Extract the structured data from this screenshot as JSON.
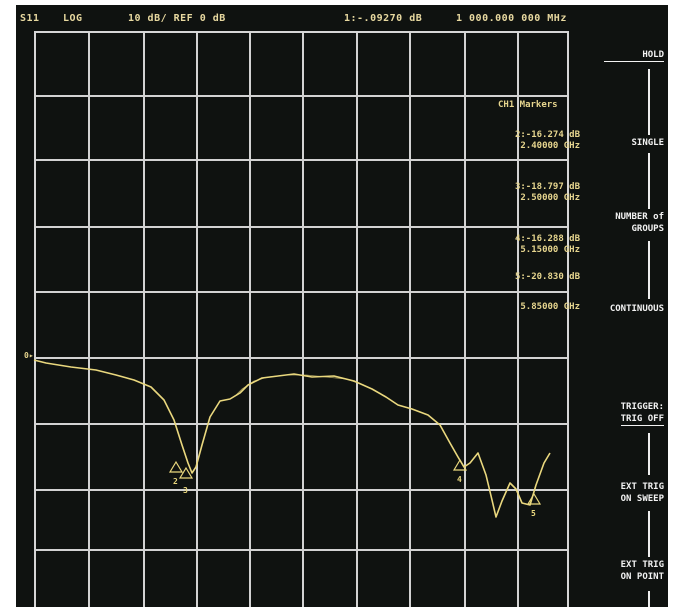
{
  "header": {
    "parameter": "S11",
    "format": "LOG",
    "scale": "10 dB/ REF 0 dB",
    "active_marker": "1:-.09270 dB",
    "frequency": "1 000.000 000 MHz"
  },
  "markers_panel": {
    "title": "CH1 Markers",
    "rows": [
      {
        "value": "2:-16.274 dB",
        "freq": "2.40000 GHz"
      },
      {
        "value": "3:-18.797 dB",
        "freq": "2.50000 GHz"
      },
      {
        "value": "4:-16.288 dB",
        "freq": "5.15000 GHz"
      },
      {
        "value": "5:-20.830 dB",
        "freq": "5.85000 GHz"
      }
    ]
  },
  "softkeys": {
    "hold": "HOLD",
    "single": "SINGLE",
    "number_of_groups_1": "NUMBER of",
    "number_of_groups_2": "GROUPS",
    "continuous": "CONTINUOUS",
    "trigger_1": "TRIGGER:",
    "trigger_2": "TRIG OFF",
    "ext_trig_sweep_1": "EXT TRIG",
    "ext_trig_sweep_2": "ON SWEEP",
    "ext_trig_point_1": "EXT TRIG",
    "ext_trig_point_2": "ON POINT"
  },
  "reference_marker": "0▸",
  "trace_labels": [
    "2",
    "3",
    "4",
    "5"
  ],
  "colors": {
    "background": "#0f1210",
    "grid": "#d2d2d2",
    "trace": "#ead87e",
    "header_text": "#e8d9a0",
    "softkey_text": "#f3f3f3"
  }
}
